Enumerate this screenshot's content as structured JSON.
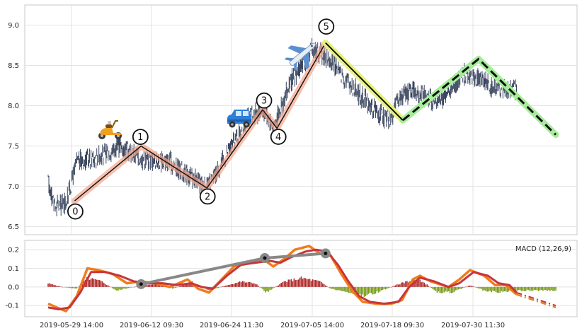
{
  "chart_data": [
    {
      "type": "line",
      "subtype": "ohlc",
      "grid": true,
      "x_dates": [
        "2019-05-29 14:00",
        "2019-06-12 09:30",
        "2019-06-24 11:30",
        "2019-07-05 14:00",
        "2019-07-18 09:30",
        "2019-07-30 11:30"
      ],
      "ylim": [
        6.4,
        9.25
      ],
      "yticks": [
        "6.5",
        "7.0",
        "7.5",
        "8.0",
        "8.5",
        "9.0"
      ],
      "price_path": [
        {
          "x": 0,
          "y": 7.05
        },
        {
          "x": 10,
          "y": 6.75
        },
        {
          "x": 25,
          "y": 6.8
        },
        {
          "x": 40,
          "y": 7.3
        },
        {
          "x": 80,
          "y": 7.4
        },
        {
          "x": 100,
          "y": 7.5
        },
        {
          "x": 130,
          "y": 7.35
        },
        {
          "x": 170,
          "y": 7.3
        },
        {
          "x": 210,
          "y": 7.05
        },
        {
          "x": 225,
          "y": 7.0
        },
        {
          "x": 240,
          "y": 7.25
        },
        {
          "x": 260,
          "y": 7.55
        },
        {
          "x": 280,
          "y": 7.85
        },
        {
          "x": 300,
          "y": 7.95
        },
        {
          "x": 315,
          "y": 7.75
        },
        {
          "x": 340,
          "y": 8.3
        },
        {
          "x": 370,
          "y": 8.7
        },
        {
          "x": 390,
          "y": 8.6
        },
        {
          "x": 420,
          "y": 8.3
        },
        {
          "x": 450,
          "y": 8.0
        },
        {
          "x": 470,
          "y": 7.85
        },
        {
          "x": 480,
          "y": 7.85
        },
        {
          "x": 490,
          "y": 8.1
        },
        {
          "x": 510,
          "y": 8.2
        },
        {
          "x": 540,
          "y": 8.05
        },
        {
          "x": 560,
          "y": 8.15
        },
        {
          "x": 580,
          "y": 8.4
        },
        {
          "x": 600,
          "y": 8.35
        },
        {
          "x": 620,
          "y": 8.25
        },
        {
          "x": 640,
          "y": 8.2
        },
        {
          "x": 655,
          "y": 8.2
        }
      ],
      "wave_points": [
        {
          "label": "0",
          "x": 37,
          "y": 6.82
        },
        {
          "label": "1",
          "x": 130,
          "y": 7.5
        },
        {
          "label": "2",
          "x": 222,
          "y": 6.98
        },
        {
          "label": "3",
          "x": 300,
          "y": 7.95
        },
        {
          "label": "4",
          "x": 320,
          "y": 7.72
        },
        {
          "label": "5",
          "x": 388,
          "y": 8.78
        }
      ],
      "abc_projection": [
        {
          "x": 388,
          "y": 8.78
        },
        {
          "x": 496,
          "y": 7.82
        },
        {
          "x": 602,
          "y": 8.58
        },
        {
          "x": 710,
          "y": 7.64
        }
      ],
      "icons": [
        "scooter-icon",
        "car-icon",
        "airplane-icon"
      ]
    },
    {
      "type": "line",
      "title": "MACD (12,26,9)",
      "grid": true,
      "ylim": [
        -0.16,
        0.25
      ],
      "yticks": [
        "-0.1",
        "0.0",
        "0.1",
        "0.2"
      ],
      "macd": [
        {
          "x": 0,
          "y": -0.09
        },
        {
          "x": 12,
          "y": -0.11
        },
        {
          "x": 25,
          "y": -0.13
        },
        {
          "x": 40,
          "y": -0.05
        },
        {
          "x": 55,
          "y": 0.1
        },
        {
          "x": 70,
          "y": 0.09
        },
        {
          "x": 90,
          "y": 0.07
        },
        {
          "x": 110,
          "y": 0.02
        },
        {
          "x": 130,
          "y": 0.03
        },
        {
          "x": 150,
          "y": 0.02
        },
        {
          "x": 170,
          "y": 0.0
        },
        {
          "x": 195,
          "y": 0.04
        },
        {
          "x": 210,
          "y": -0.01
        },
        {
          "x": 225,
          "y": -0.03
        },
        {
          "x": 245,
          "y": 0.05
        },
        {
          "x": 260,
          "y": 0.11
        },
        {
          "x": 285,
          "y": 0.13
        },
        {
          "x": 300,
          "y": 0.15
        },
        {
          "x": 315,
          "y": 0.11
        },
        {
          "x": 330,
          "y": 0.15
        },
        {
          "x": 345,
          "y": 0.2
        },
        {
          "x": 365,
          "y": 0.22
        },
        {
          "x": 380,
          "y": 0.18
        },
        {
          "x": 395,
          "y": 0.17
        },
        {
          "x": 410,
          "y": 0.07
        },
        {
          "x": 425,
          "y": -0.02
        },
        {
          "x": 440,
          "y": -0.08
        },
        {
          "x": 460,
          "y": -0.09
        },
        {
          "x": 480,
          "y": -0.09
        },
        {
          "x": 495,
          "y": -0.07
        },
        {
          "x": 510,
          "y": 0.04
        },
        {
          "x": 520,
          "y": 0.06
        },
        {
          "x": 535,
          "y": 0.03
        },
        {
          "x": 560,
          "y": 0.0
        },
        {
          "x": 575,
          "y": 0.04
        },
        {
          "x": 590,
          "y": 0.09
        },
        {
          "x": 610,
          "y": 0.06
        },
        {
          "x": 625,
          "y": 0.01
        },
        {
          "x": 640,
          "y": 0.01
        },
        {
          "x": 655,
          "y": -0.04
        },
        {
          "x": 710,
          "y": -0.11
        }
      ],
      "signal": [
        {
          "x": 0,
          "y": -0.11
        },
        {
          "x": 15,
          "y": -0.12
        },
        {
          "x": 30,
          "y": -0.11
        },
        {
          "x": 45,
          "y": -0.03
        },
        {
          "x": 60,
          "y": 0.08
        },
        {
          "x": 80,
          "y": 0.08
        },
        {
          "x": 100,
          "y": 0.06
        },
        {
          "x": 120,
          "y": 0.03
        },
        {
          "x": 140,
          "y": 0.02
        },
        {
          "x": 160,
          "y": 0.02
        },
        {
          "x": 180,
          "y": 0.01
        },
        {
          "x": 200,
          "y": 0.02
        },
        {
          "x": 215,
          "y": 0.0
        },
        {
          "x": 230,
          "y": -0.01
        },
        {
          "x": 250,
          "y": 0.06
        },
        {
          "x": 270,
          "y": 0.12
        },
        {
          "x": 290,
          "y": 0.13
        },
        {
          "x": 310,
          "y": 0.14
        },
        {
          "x": 325,
          "y": 0.13
        },
        {
          "x": 340,
          "y": 0.16
        },
        {
          "x": 360,
          "y": 0.19
        },
        {
          "x": 375,
          "y": 0.2
        },
        {
          "x": 390,
          "y": 0.19
        },
        {
          "x": 405,
          "y": 0.12
        },
        {
          "x": 420,
          "y": 0.03
        },
        {
          "x": 435,
          "y": -0.05
        },
        {
          "x": 450,
          "y": -0.08
        },
        {
          "x": 470,
          "y": -0.09
        },
        {
          "x": 490,
          "y": -0.08
        },
        {
          "x": 505,
          "y": 0.0
        },
        {
          "x": 520,
          "y": 0.05
        },
        {
          "x": 540,
          "y": 0.03
        },
        {
          "x": 560,
          "y": 0.0
        },
        {
          "x": 575,
          "y": 0.02
        },
        {
          "x": 595,
          "y": 0.08
        },
        {
          "x": 615,
          "y": 0.06
        },
        {
          "x": 630,
          "y": 0.02
        },
        {
          "x": 645,
          "y": 0.01
        },
        {
          "x": 655,
          "y": -0.03
        },
        {
          "x": 710,
          "y": -0.1
        }
      ],
      "histogram_envelope": [
        {
          "x": 0,
          "y": 0.02
        },
        {
          "x": 20,
          "y": 0.0
        },
        {
          "x": 40,
          "y": -0.01
        },
        {
          "x": 55,
          "y": 0.05
        },
        {
          "x": 75,
          "y": 0.03
        },
        {
          "x": 95,
          "y": -0.02
        },
        {
          "x": 120,
          "y": 0.0
        },
        {
          "x": 150,
          "y": 0.02
        },
        {
          "x": 175,
          "y": -0.01
        },
        {
          "x": 200,
          "y": 0.03
        },
        {
          "x": 225,
          "y": -0.02
        },
        {
          "x": 250,
          "y": 0.01
        },
        {
          "x": 270,
          "y": 0.03
        },
        {
          "x": 290,
          "y": 0.02
        },
        {
          "x": 305,
          "y": -0.03
        },
        {
          "x": 330,
          "y": 0.03
        },
        {
          "x": 355,
          "y": 0.05
        },
        {
          "x": 380,
          "y": 0.03
        },
        {
          "x": 395,
          "y": -0.01
        },
        {
          "x": 420,
          "y": -0.03
        },
        {
          "x": 440,
          "y": -0.05
        },
        {
          "x": 460,
          "y": -0.03
        },
        {
          "x": 480,
          "y": 0.0
        },
        {
          "x": 500,
          "y": 0.03
        },
        {
          "x": 520,
          "y": 0.04
        },
        {
          "x": 545,
          "y": -0.03
        },
        {
          "x": 565,
          "y": -0.03
        },
        {
          "x": 590,
          "y": 0.01
        },
        {
          "x": 610,
          "y": -0.02
        },
        {
          "x": 630,
          "y": -0.03
        },
        {
          "x": 655,
          "y": -0.02
        },
        {
          "x": 710,
          "y": -0.02
        }
      ],
      "divergence_points": [
        {
          "x": 130,
          "y": 0.015
        },
        {
          "x": 303,
          "y": 0.155
        },
        {
          "x": 388,
          "y": 0.18
        }
      ]
    }
  ]
}
